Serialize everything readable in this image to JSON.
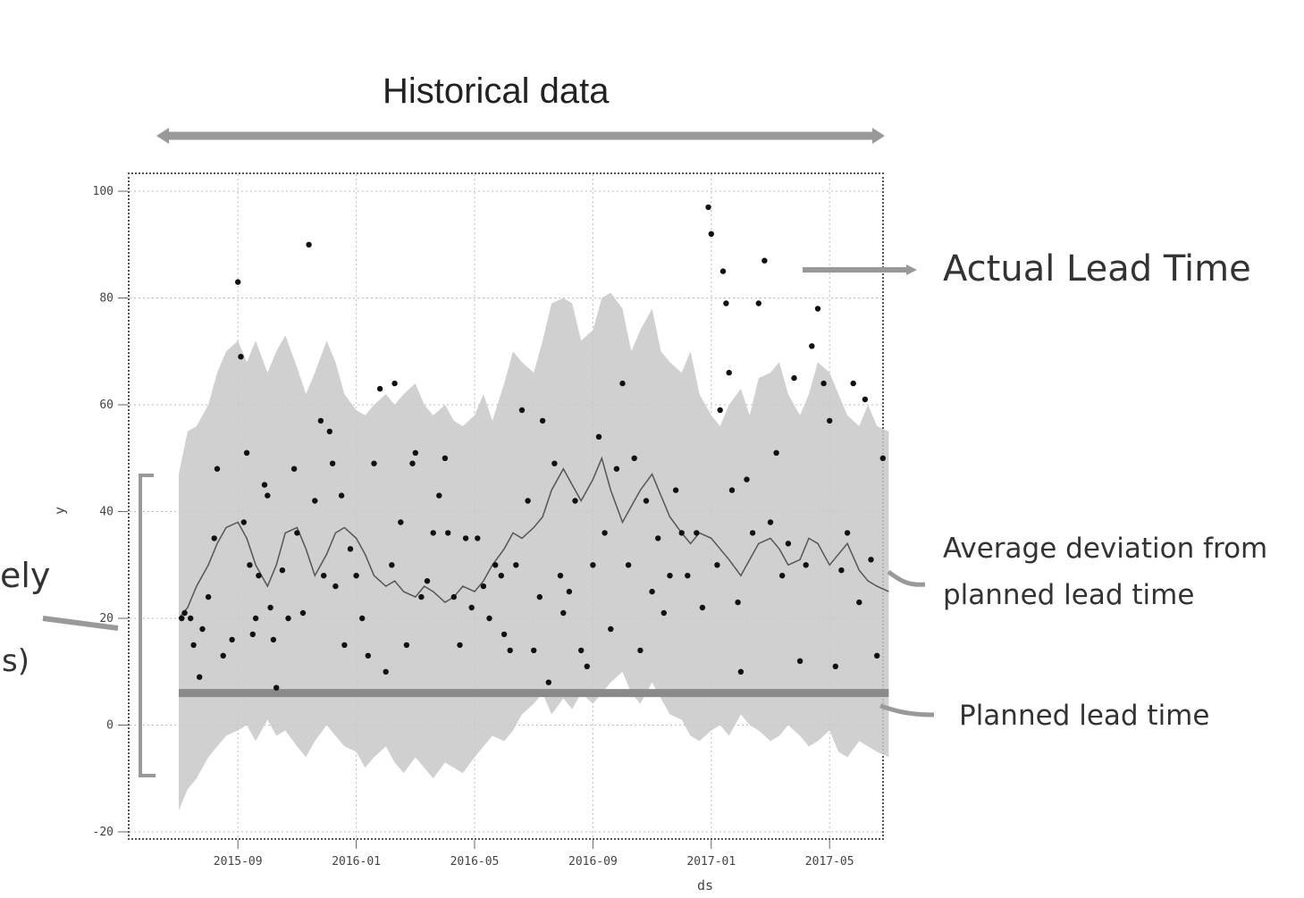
{
  "annotations": {
    "historical": "Historical data",
    "actual": "Actual Lead Time",
    "avg_line1": "Average deviation from",
    "avg_line2": "planned lead time",
    "planned": "Planned lead time",
    "cut_left_1": "ely",
    "cut_left_2": "s)"
  },
  "colors": {
    "band": "#c8c8c8",
    "planned_line": "#8a8a8a",
    "points": "#111111",
    "grid": "#bdbdbd"
  },
  "chart_data": {
    "type": "scatter",
    "xlabel": "ds",
    "ylabel": "y",
    "ylim": [
      -20,
      100
    ],
    "yticks": [
      -20,
      0,
      20,
      40,
      60,
      80,
      100
    ],
    "xticks": [
      "2015-09",
      "2016-01",
      "2016-05",
      "2016-09",
      "2017-01",
      "2017-05"
    ],
    "grid": true,
    "planned_lead_time": 6,
    "x_months": [
      0,
      0.3,
      0.6,
      1,
      1.3,
      1.6,
      2,
      2.3,
      2.6,
      3,
      3.3,
      3.6,
      4,
      4.3,
      4.6,
      5,
      5.3,
      5.6,
      6,
      6.3,
      6.6,
      7,
      7.3,
      7.6,
      8,
      8.3,
      8.6,
      9,
      9.3,
      9.6,
      10,
      10.3,
      10.6,
      11,
      11.3,
      11.6,
      12,
      12.3,
      12.6,
      13,
      13.3,
      13.6,
      14,
      14.3,
      14.6,
      15,
      15.3,
      15.6,
      16,
      16.3,
      16.6,
      17,
      17.3,
      17.6,
      18,
      18.3,
      18.6,
      19,
      19.3,
      19.6,
      20,
      20.3,
      20.6,
      21,
      21.3,
      21.6,
      22,
      22.3,
      22.6,
      23,
      23.3,
      23.6,
      24
    ],
    "band_upper": [
      47,
      55,
      56,
      60,
      66,
      70,
      72,
      68,
      72,
      66,
      70,
      73,
      67,
      62,
      66,
      72,
      68,
      62,
      59,
      58,
      60,
      62,
      60,
      62,
      64,
      60,
      58,
      60,
      57,
      56,
      58,
      62,
      57,
      64,
      70,
      68,
      66,
      72,
      79,
      80,
      79,
      72,
      74,
      80,
      81,
      78,
      70,
      74,
      78,
      70,
      68,
      66,
      70,
      62,
      58,
      56,
      60,
      63,
      58,
      65,
      66,
      68,
      62,
      58,
      62,
      68,
      66,
      62,
      58,
      56,
      60,
      56,
      55
    ],
    "band_lower": [
      -16,
      -12,
      -10,
      -6,
      -4,
      -2,
      -1,
      0,
      -3,
      1,
      -2,
      -1,
      -4,
      -6,
      -3,
      0,
      -2,
      -4,
      -5,
      -8,
      -6,
      -4,
      -7,
      -9,
      -6,
      -8,
      -10,
      -7,
      -8,
      -9,
      -6,
      -4,
      -2,
      -3,
      -1,
      2,
      4,
      6,
      2,
      5,
      3,
      6,
      4,
      6,
      8,
      10,
      6,
      4,
      8,
      5,
      2,
      1,
      -2,
      -3,
      -1,
      0,
      -2,
      2,
      0,
      -1,
      -3,
      -2,
      0,
      -2,
      -4,
      -3,
      -1,
      -5,
      -6,
      -3,
      -4,
      -5,
      -6
    ],
    "avg_line": [
      20,
      22,
      26,
      30,
      34,
      37,
      38,
      35,
      30,
      26,
      30,
      36,
      37,
      33,
      28,
      32,
      36,
      37,
      35,
      32,
      28,
      26,
      27,
      25,
      24,
      26,
      25,
      23,
      24,
      26,
      25,
      27,
      30,
      33,
      36,
      35,
      37,
      39,
      44,
      48,
      45,
      42,
      46,
      50,
      44,
      38,
      41,
      44,
      47,
      43,
      39,
      36,
      34,
      36,
      35,
      33,
      31,
      28,
      31,
      34,
      35,
      33,
      30,
      31,
      35,
      34,
      30,
      32,
      34,
      29,
      27,
      26,
      25
    ],
    "points": [
      [
        0.1,
        20
      ],
      [
        0.2,
        21
      ],
      [
        0.4,
        20
      ],
      [
        0.5,
        15
      ],
      [
        0.7,
        9
      ],
      [
        0.8,
        18
      ],
      [
        1.0,
        24
      ],
      [
        1.2,
        35
      ],
      [
        1.3,
        48
      ],
      [
        1.5,
        13
      ],
      [
        1.8,
        16
      ],
      [
        2.0,
        83
      ],
      [
        2.1,
        69
      ],
      [
        2.2,
        38
      ],
      [
        2.3,
        51
      ],
      [
        2.4,
        30
      ],
      [
        2.5,
        17
      ],
      [
        2.6,
        20
      ],
      [
        2.7,
        28
      ],
      [
        2.9,
        45
      ],
      [
        3.0,
        43
      ],
      [
        3.1,
        22
      ],
      [
        3.2,
        16
      ],
      [
        3.3,
        7
      ],
      [
        3.5,
        29
      ],
      [
        3.7,
        20
      ],
      [
        3.9,
        48
      ],
      [
        4.0,
        36
      ],
      [
        4.2,
        21
      ],
      [
        4.4,
        90
      ],
      [
        4.6,
        42
      ],
      [
        4.8,
        57
      ],
      [
        4.9,
        28
      ],
      [
        5.1,
        55
      ],
      [
        5.2,
        49
      ],
      [
        5.3,
        26
      ],
      [
        5.5,
        43
      ],
      [
        5.6,
        15
      ],
      [
        5.8,
        33
      ],
      [
        6.0,
        28
      ],
      [
        6.2,
        20
      ],
      [
        6.4,
        13
      ],
      [
        6.6,
        49
      ],
      [
        6.8,
        63
      ],
      [
        7.0,
        10
      ],
      [
        7.2,
        30
      ],
      [
        7.3,
        64
      ],
      [
        7.5,
        38
      ],
      [
        7.7,
        15
      ],
      [
        7.9,
        49
      ],
      [
        8.0,
        51
      ],
      [
        8.2,
        24
      ],
      [
        8.4,
        27
      ],
      [
        8.6,
        36
      ],
      [
        8.8,
        43
      ],
      [
        9.0,
        50
      ],
      [
        9.1,
        36
      ],
      [
        9.3,
        24
      ],
      [
        9.5,
        15
      ],
      [
        9.7,
        35
      ],
      [
        9.9,
        22
      ],
      [
        10.1,
        35
      ],
      [
        10.3,
        26
      ],
      [
        10.5,
        20
      ],
      [
        10.7,
        30
      ],
      [
        10.9,
        28
      ],
      [
        11.0,
        17
      ],
      [
        11.2,
        14
      ],
      [
        11.4,
        30
      ],
      [
        11.6,
        59
      ],
      [
        11.8,
        42
      ],
      [
        12.0,
        14
      ],
      [
        12.2,
        24
      ],
      [
        12.3,
        57
      ],
      [
        12.5,
        8
      ],
      [
        12.7,
        49
      ],
      [
        12.9,
        28
      ],
      [
        13.0,
        21
      ],
      [
        13.2,
        25
      ],
      [
        13.4,
        42
      ],
      [
        13.6,
        14
      ],
      [
        13.8,
        11
      ],
      [
        14.0,
        30
      ],
      [
        14.2,
        54
      ],
      [
        14.4,
        36
      ],
      [
        14.6,
        18
      ],
      [
        14.8,
        48
      ],
      [
        15.0,
        64
      ],
      [
        15.2,
        30
      ],
      [
        15.4,
        50
      ],
      [
        15.6,
        14
      ],
      [
        15.8,
        42
      ],
      [
        16.0,
        25
      ],
      [
        16.2,
        35
      ],
      [
        16.4,
        21
      ],
      [
        16.6,
        28
      ],
      [
        16.8,
        44
      ],
      [
        17.0,
        36
      ],
      [
        17.2,
        28
      ],
      [
        17.5,
        36
      ],
      [
        17.7,
        22
      ],
      [
        17.9,
        97
      ],
      [
        18.0,
        92
      ],
      [
        18.2,
        30
      ],
      [
        18.3,
        59
      ],
      [
        18.4,
        85
      ],
      [
        18.5,
        79
      ],
      [
        18.6,
        66
      ],
      [
        18.7,
        44
      ],
      [
        18.9,
        23
      ],
      [
        19.0,
        10
      ],
      [
        19.2,
        46
      ],
      [
        19.4,
        36
      ],
      [
        19.6,
        79
      ],
      [
        19.8,
        87
      ],
      [
        20.0,
        38
      ],
      [
        20.2,
        51
      ],
      [
        20.4,
        28
      ],
      [
        20.6,
        34
      ],
      [
        20.8,
        65
      ],
      [
        21.0,
        12
      ],
      [
        21.2,
        30
      ],
      [
        21.4,
        71
      ],
      [
        21.6,
        78
      ],
      [
        21.8,
        64
      ],
      [
        22.0,
        57
      ],
      [
        22.2,
        11
      ],
      [
        22.4,
        29
      ],
      [
        22.6,
        36
      ],
      [
        22.8,
        64
      ],
      [
        23.0,
        23
      ],
      [
        23.2,
        61
      ],
      [
        23.4,
        31
      ],
      [
        23.6,
        13
      ],
      [
        23.8,
        50
      ]
    ]
  }
}
